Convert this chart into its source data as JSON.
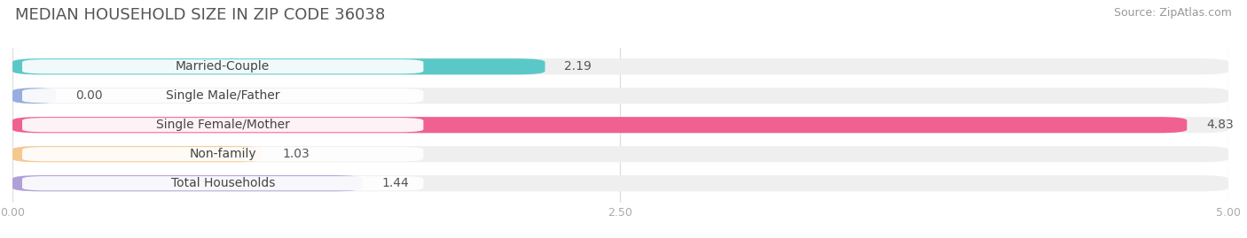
{
  "title": "MEDIAN HOUSEHOLD SIZE IN ZIP CODE 36038",
  "source": "Source: ZipAtlas.com",
  "categories": [
    "Married-Couple",
    "Single Male/Father",
    "Single Female/Mother",
    "Non-family",
    "Total Households"
  ],
  "values": [
    2.19,
    0.0,
    4.83,
    1.03,
    1.44
  ],
  "bar_colors": [
    "#5bc8c8",
    "#98aee0",
    "#f06090",
    "#f5c890",
    "#b0a0d8"
  ],
  "bar_bg_color": "#efefef",
  "xlim": [
    0,
    5.0
  ],
  "xticks": [
    0.0,
    2.5,
    5.0
  ],
  "xtick_labels": [
    "0.00",
    "2.50",
    "5.00"
  ],
  "title_fontsize": 13,
  "source_fontsize": 9,
  "label_fontsize": 10,
  "value_fontsize": 10,
  "background_color": "#ffffff",
  "bar_height": 0.55,
  "bar_gap": 1.0,
  "figsize": [
    14.06,
    2.69
  ]
}
